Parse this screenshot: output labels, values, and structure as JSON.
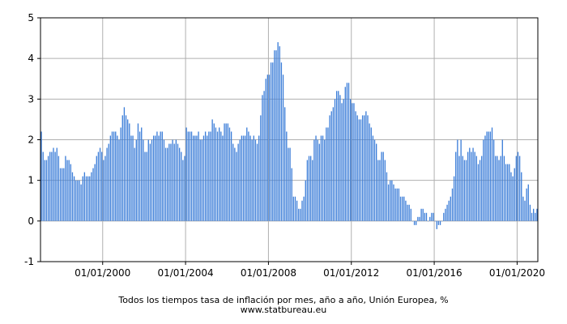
{
  "chart_data": {
    "type": "bar",
    "title": "Todos los tiempos tasa de inflación por mes, año a año, Unión Europea, %",
    "source": "www.statbureau.eu",
    "xlabel": "",
    "ylabel": "",
    "ylim": [
      -1,
      5
    ],
    "yticks": [
      "5",
      "4",
      "3",
      "2",
      "1",
      "0",
      "-1"
    ],
    "x_ticks": [
      "01/01/2000",
      "01/01/2004",
      "01/01/2008",
      "01/01/2012",
      "01/01/2016",
      "01/01/2020"
    ],
    "grid": true,
    "bar_color": "#3b7dd8",
    "grid_color": "#b0b0b0",
    "start_month": "1997-01",
    "series": [
      {
        "values": [
          2.2,
          1.7,
          1.5,
          1.5,
          1.6,
          1.7,
          1.7,
          1.8,
          1.7,
          1.8,
          1.6,
          1.3,
          1.3,
          1.3,
          1.6,
          1.5,
          1.5,
          1.4,
          1.2,
          1.1,
          1.0,
          1.0,
          1.0,
          0.9,
          1.1,
          1.2,
          1.1,
          1.1,
          1.1,
          1.2,
          1.3,
          1.4,
          1.6,
          1.7,
          1.8,
          1.7,
          1.5,
          1.6,
          1.8,
          1.9,
          2.1,
          2.2,
          2.2,
          2.2,
          2.1,
          2.0,
          2.3,
          2.6,
          2.8,
          2.6,
          2.5,
          2.4,
          2.1,
          2.1,
          1.8,
          2.0,
          2.4,
          2.2,
          2.3,
          2.0,
          1.7,
          1.7,
          2.0,
          1.9,
          2.0,
          2.1,
          2.1,
          2.2,
          2.1,
          2.2,
          2.2,
          2.0,
          1.8,
          1.8,
          1.9,
          1.9,
          2.0,
          1.9,
          2.0,
          1.9,
          1.8,
          1.7,
          1.5,
          1.6,
          2.3,
          2.2,
          2.2,
          2.2,
          2.1,
          2.1,
          2.1,
          2.2,
          2.0,
          2.0,
          2.1,
          2.2,
          2.1,
          2.2,
          2.2,
          2.5,
          2.4,
          2.3,
          2.2,
          2.3,
          2.2,
          2.1,
          2.4,
          2.4,
          2.4,
          2.3,
          2.2,
          1.9,
          1.8,
          1.7,
          1.9,
          2.0,
          2.1,
          2.1,
          2.1,
          2.3,
          2.2,
          2.1,
          2.0,
          2.1,
          2.0,
          1.9,
          2.1,
          2.6,
          3.1,
          3.2,
          3.5,
          3.6,
          3.6,
          3.9,
          3.9,
          4.2,
          4.2,
          4.4,
          4.3,
          3.9,
          3.6,
          2.8,
          2.2,
          1.8,
          1.8,
          1.3,
          0.6,
          0.6,
          0.5,
          0.3,
          0.3,
          0.5,
          0.6,
          1.0,
          1.5,
          1.6,
          1.6,
          1.5,
          2.0,
          2.1,
          2.0,
          1.9,
          2.1,
          2.1,
          2.0,
          2.3,
          2.3,
          2.6,
          2.7,
          2.8,
          3.0,
          3.2,
          3.2,
          3.1,
          2.9,
          3.0,
          3.3,
          3.4,
          3.4,
          3.0,
          2.9,
          2.9,
          2.7,
          2.6,
          2.5,
          2.5,
          2.6,
          2.6,
          2.7,
          2.6,
          2.4,
          2.3,
          2.1,
          2.0,
          1.9,
          1.5,
          1.5,
          1.7,
          1.7,
          1.5,
          1.2,
          0.9,
          1.0,
          1.0,
          0.9,
          0.8,
          0.8,
          0.8,
          0.6,
          0.6,
          0.6,
          0.5,
          0.4,
          0.4,
          0.3,
          0.0,
          -0.1,
          -0.1,
          0.1,
          0.1,
          0.3,
          0.3,
          0.2,
          0.2,
          0.0,
          0.1,
          0.2,
          0.2,
          0.0,
          -0.2,
          -0.1,
          -0.1,
          0.0,
          0.2,
          0.3,
          0.4,
          0.5,
          0.6,
          0.8,
          1.1,
          1.7,
          2.0,
          1.6,
          2.0,
          1.6,
          1.5,
          1.5,
          1.7,
          1.8,
          1.7,
          1.8,
          1.7,
          1.6,
          1.4,
          1.5,
          1.6,
          2.0,
          2.1,
          2.2,
          2.2,
          2.2,
          2.3,
          2.0,
          1.6,
          1.6,
          1.5,
          1.6,
          2.0,
          1.6,
          1.4,
          1.4,
          1.4,
          1.2,
          1.1,
          1.3,
          1.6,
          1.7,
          1.6,
          1.2,
          0.6,
          0.5,
          0.8,
          0.9,
          0.4,
          0.2,
          0.3,
          0.2,
          0.3
        ]
      }
    ]
  }
}
